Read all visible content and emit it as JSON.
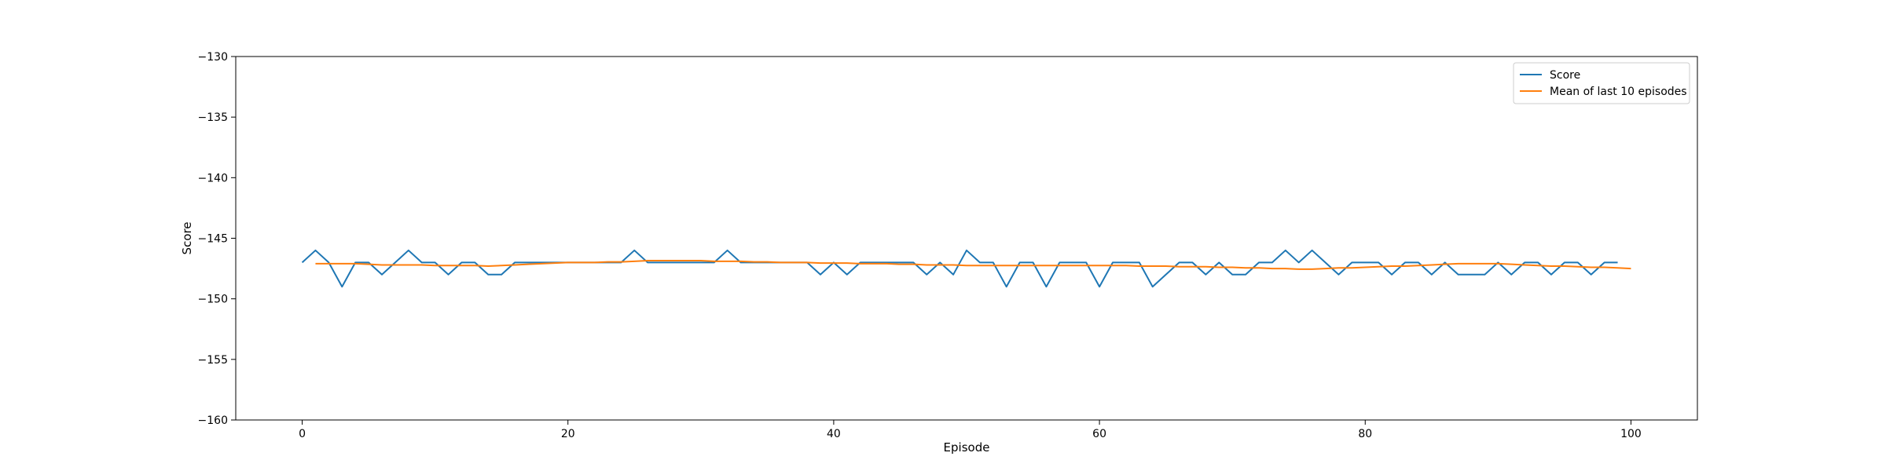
{
  "chart_data": {
    "type": "line",
    "title": "",
    "xlabel": "Episode",
    "ylabel": "Score",
    "xlim": [
      -5,
      105
    ],
    "ylim": [
      -160,
      -130
    ],
    "xticks": [
      0,
      20,
      40,
      60,
      80,
      100
    ],
    "yticks": [
      -160,
      -155,
      -150,
      -145,
      -140,
      -135,
      -130
    ],
    "xtick_labels": [
      "0",
      "20",
      "40",
      "60",
      "80",
      "100"
    ],
    "ytick_labels": [
      "−160",
      "−155",
      "−150",
      "−145",
      "−140",
      "−135",
      "−130"
    ],
    "grid": false,
    "legend_position": "top-right",
    "series": [
      {
        "name": "Score",
        "color": "#1f77b4",
        "x_start": 0,
        "values": [
          -147,
          -146,
          -147,
          -149,
          -147,
          -147,
          -148,
          -147,
          -146,
          -147,
          -147,
          -148,
          -147,
          -147,
          -148,
          -148,
          -147,
          -147,
          -147,
          -147,
          -147,
          -147,
          -147,
          -147,
          -147,
          -146,
          -147,
          -147,
          -147,
          -147,
          -147,
          -147,
          -146,
          -147,
          -147,
          -147,
          -147,
          -147,
          -147,
          -148,
          -147,
          -148,
          -147,
          -147,
          -147,
          -147,
          -147,
          -148,
          -147,
          -148,
          -146,
          -147,
          -147,
          -149,
          -147,
          -147,
          -149,
          -147,
          -147,
          -147,
          -149,
          -147,
          -147,
          -147,
          -149,
          -148,
          -147,
          -147,
          -148,
          -147,
          -148,
          -148,
          -147,
          -147,
          -146,
          -147,
          -146,
          -147,
          -148,
          -147,
          -147,
          -147,
          -148,
          -147,
          -147,
          -148,
          -147,
          -148,
          -148,
          -148,
          -147,
          -148,
          -147,
          -147,
          -148,
          -147,
          -147,
          -148,
          -147,
          -147
        ]
      },
      {
        "name": "Mean of last 10 episodes",
        "color": "#ff7f0e",
        "x_start": 1,
        "values": [
          -147.1,
          -147.1,
          -147.1,
          -147.1,
          -147.15,
          -147.2,
          -147.2,
          -147.2,
          -147.2,
          -147.25,
          -147.25,
          -147.25,
          -147.25,
          -147.3,
          -147.25,
          -147.2,
          -147.15,
          -147.1,
          -147.05,
          -147.0,
          -147.0,
          -147.0,
          -146.95,
          -146.95,
          -146.9,
          -146.85,
          -146.85,
          -146.85,
          -146.85,
          -146.85,
          -146.9,
          -146.9,
          -146.9,
          -146.95,
          -146.95,
          -147.0,
          -147.0,
          -147.0,
          -147.05,
          -147.05,
          -147.05,
          -147.1,
          -147.1,
          -147.1,
          -147.15,
          -147.15,
          -147.2,
          -147.2,
          -147.2,
          -147.25,
          -147.25,
          -147.25,
          -147.25,
          -147.25,
          -147.25,
          -147.25,
          -147.25,
          -147.25,
          -147.25,
          -147.25,
          -147.25,
          -147.25,
          -147.3,
          -147.3,
          -147.3,
          -147.35,
          -147.35,
          -147.35,
          -147.4,
          -147.4,
          -147.45,
          -147.45,
          -147.5,
          -147.5,
          -147.55,
          -147.55,
          -147.5,
          -147.45,
          -147.45,
          -147.4,
          -147.35,
          -147.3,
          -147.3,
          -147.25,
          -147.2,
          -147.15,
          -147.1,
          -147.1,
          -147.1,
          -147.1,
          -147.15,
          -147.2,
          -147.25,
          -147.3,
          -147.3,
          -147.35,
          -147.4,
          -147.4,
          -147.45,
          -147.5
        ]
      }
    ]
  }
}
